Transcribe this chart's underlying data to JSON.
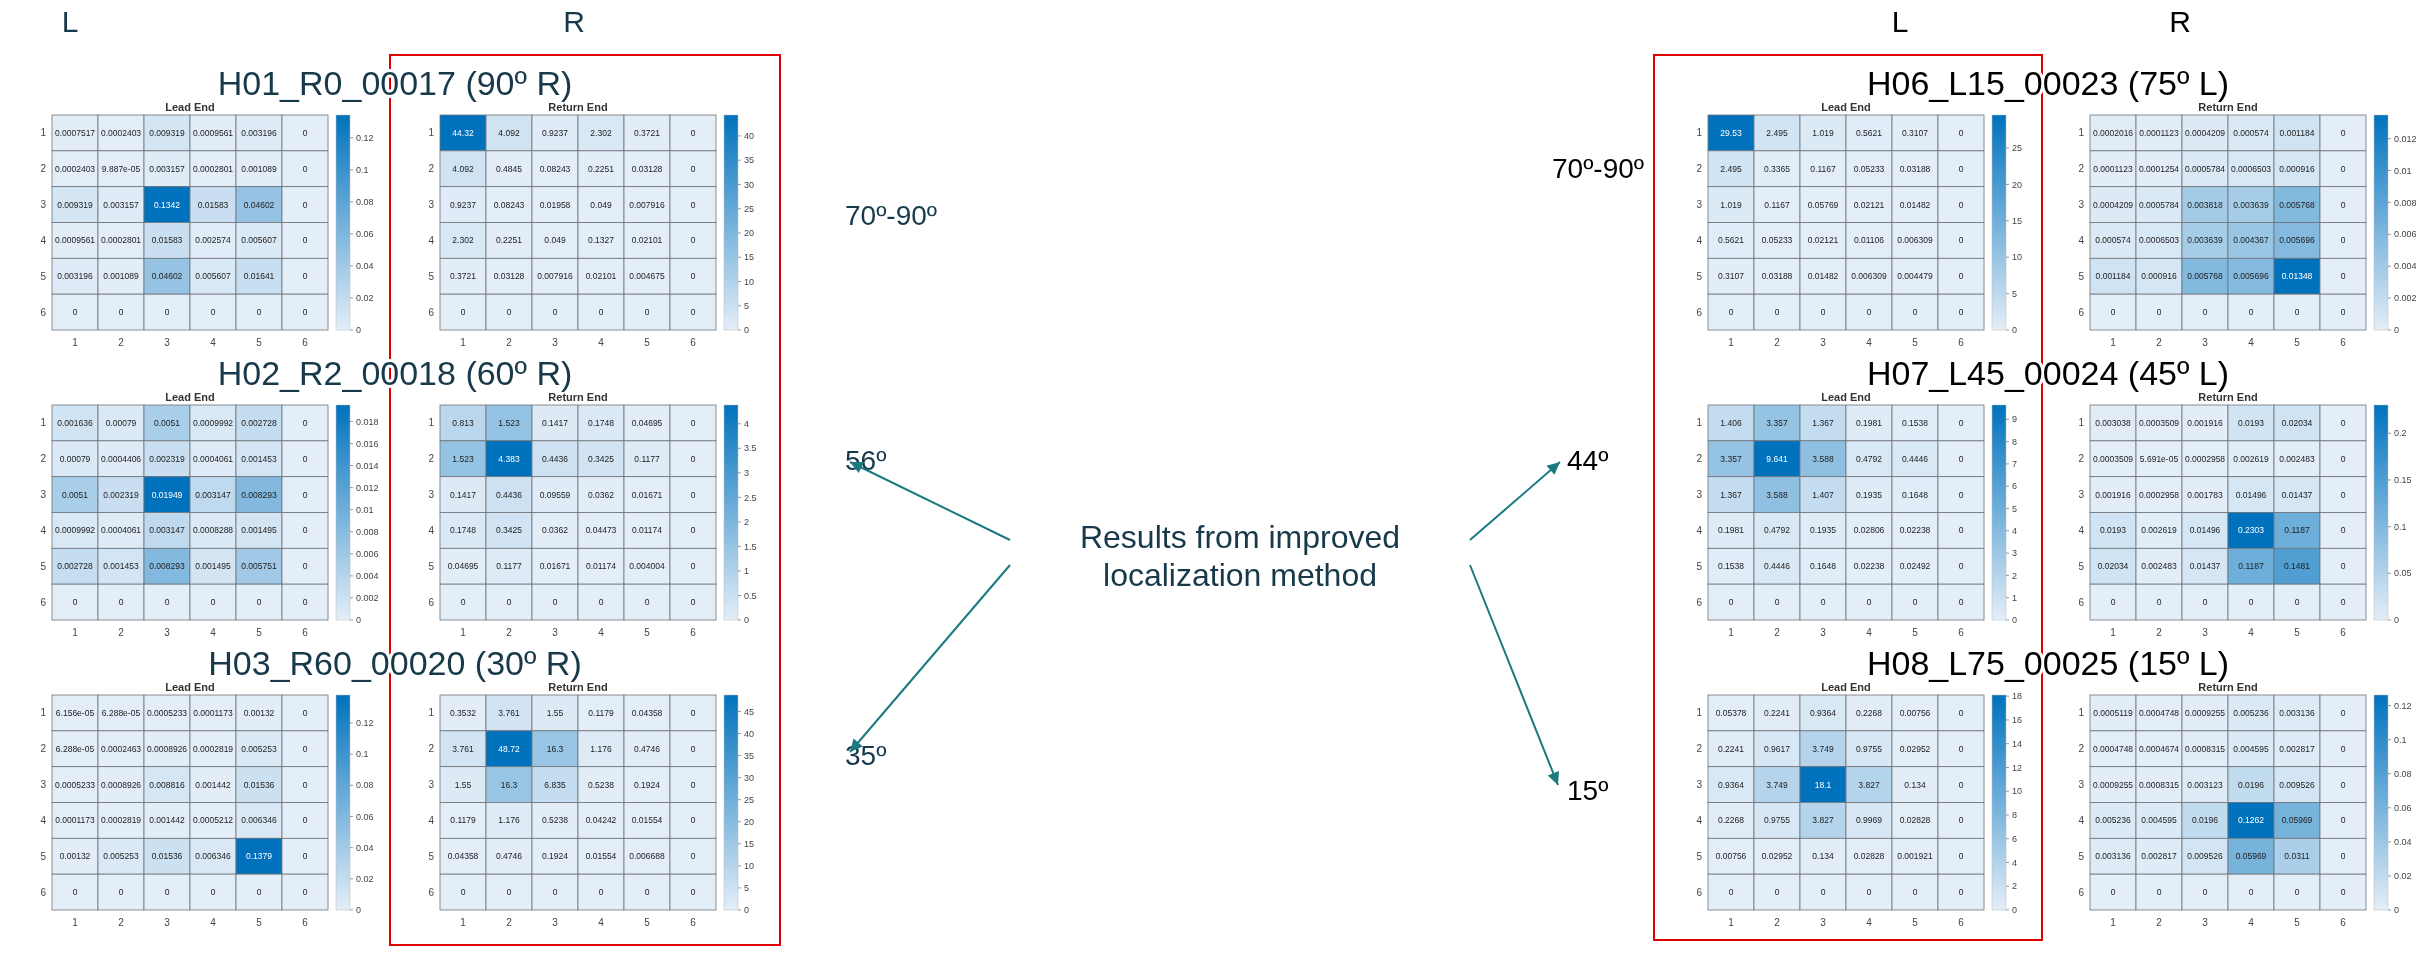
{
  "chart_data": [
    {
      "type": "heatmap",
      "subtitle": "H01_R0_00017 (90º R)",
      "title": "Lead End",
      "categories": [
        "1",
        "2",
        "3",
        "4",
        "5",
        "6"
      ],
      "y_categories": [
        "1",
        "2",
        "3",
        "4",
        "5",
        "6"
      ],
      "data_labels": true,
      "clim": [
        0,
        0.1342
      ],
      "cticks": [
        0,
        0.02,
        0.04,
        0.06,
        0.08,
        0.1,
        0.12
      ],
      "cells": [
        [
          0.0007517,
          0.0002403,
          0.009319,
          0.0009561,
          0.003196,
          0
        ],
        [
          0.0002403,
          9.887e-05,
          0.003157,
          0.0002801,
          0.001089,
          0
        ],
        [
          0.009319,
          0.003157,
          0.1342,
          0.01583,
          0.04602,
          0
        ],
        [
          0.0009561,
          0.0002801,
          0.01583,
          0.002574,
          0.005607,
          0
        ],
        [
          0.003196,
          0.001089,
          0.04602,
          0.005607,
          0.01641,
          0
        ],
        [
          0,
          0,
          0,
          0,
          0,
          0
        ]
      ]
    },
    {
      "type": "heatmap",
      "title": "Return End",
      "categories": [
        "1",
        "2",
        "3",
        "4",
        "5",
        "6"
      ],
      "y_categories": [
        "1",
        "2",
        "3",
        "4",
        "5",
        "6"
      ],
      "data_labels": true,
      "clim": [
        0,
        44.32
      ],
      "cticks": [
        0,
        5,
        10,
        15,
        20,
        25,
        30,
        35,
        40
      ],
      "cells": [
        [
          44.32,
          4.092,
          0.9237,
          2.302,
          0.3721,
          0
        ],
        [
          4.092,
          0.4845,
          0.08243,
          0.2251,
          0.03128,
          0
        ],
        [
          0.9237,
          0.08243,
          0.01958,
          0.049,
          0.007916,
          0
        ],
        [
          2.302,
          0.2251,
          0.049,
          0.1327,
          0.02101,
          0
        ],
        [
          0.3721,
          0.03128,
          0.007916,
          0.02101,
          0.004675,
          0
        ],
        [
          0,
          0,
          0,
          0,
          0,
          0
        ]
      ]
    },
    {
      "type": "heatmap",
      "subtitle": "H02_R2_00018 (60º R)",
      "title": "Lead End",
      "categories": [
        "1",
        "2",
        "3",
        "4",
        "5",
        "6"
      ],
      "y_categories": [
        "1",
        "2",
        "3",
        "4",
        "5",
        "6"
      ],
      "data_labels": true,
      "clim": [
        0,
        0.01949
      ],
      "cticks": [
        0,
        0.002,
        0.004,
        0.006,
        0.008,
        0.01,
        0.012,
        0.014,
        0.016,
        0.018
      ],
      "cells": [
        [
          0.001636,
          0.00079,
          0.0051,
          0.0009992,
          0.002728,
          0
        ],
        [
          0.00079,
          0.0004406,
          0.002319,
          0.0004061,
          0.001453,
          0
        ],
        [
          0.0051,
          0.002319,
          0.01949,
          0.003147,
          0.008293,
          0
        ],
        [
          0.0009992,
          0.0004061,
          0.003147,
          0.0008288,
          0.001495,
          0
        ],
        [
          0.002728,
          0.001453,
          0.008293,
          0.001495,
          0.005751,
          0
        ],
        [
          0,
          0,
          0,
          0,
          0,
          0
        ]
      ]
    },
    {
      "type": "heatmap",
      "title": "Return End",
      "categories": [
        "1",
        "2",
        "3",
        "4",
        "5",
        "6"
      ],
      "y_categories": [
        "1",
        "2",
        "3",
        "4",
        "5",
        "6"
      ],
      "data_labels": true,
      "clim": [
        0,
        4.383
      ],
      "cticks": [
        0,
        0.5,
        1,
        1.5,
        2,
        2.5,
        3,
        3.5,
        4
      ],
      "cells": [
        [
          0.813,
          1.523,
          0.1417,
          0.1748,
          0.04695,
          0
        ],
        [
          1.523,
          4.383,
          0.4436,
          0.3425,
          0.1177,
          0
        ],
        [
          0.1417,
          0.4436,
          0.09559,
          0.0362,
          0.01671,
          0
        ],
        [
          0.1748,
          0.3425,
          0.0362,
          0.04473,
          0.01174,
          0
        ],
        [
          0.04695,
          0.1177,
          0.01671,
          0.01174,
          0.004004,
          0
        ],
        [
          0,
          0,
          0,
          0,
          0,
          0
        ]
      ]
    },
    {
      "type": "heatmap",
      "subtitle": "H03_R60_00020 (30º R)",
      "title": "Lead End",
      "categories": [
        "1",
        "2",
        "3",
        "4",
        "5",
        "6"
      ],
      "y_categories": [
        "1",
        "2",
        "3",
        "4",
        "5",
        "6"
      ],
      "data_labels": true,
      "clim": [
        0,
        0.1379
      ],
      "cticks": [
        0,
        0.02,
        0.04,
        0.06,
        0.08,
        0.1,
        0.12
      ],
      "cells": [
        [
          6.156e-05,
          6.288e-05,
          0.0005233,
          0.0001173,
          0.00132,
          0
        ],
        [
          6.288e-05,
          0.0002463,
          0.0008926,
          0.0002819,
          0.005253,
          0
        ],
        [
          0.0005233,
          0.0008926,
          0.008816,
          0.001442,
          0.01536,
          0
        ],
        [
          0.0001173,
          0.0002819,
          0.001442,
          0.0005212,
          0.006346,
          0
        ],
        [
          0.00132,
          0.005253,
          0.01536,
          0.006346,
          0.1379,
          0
        ],
        [
          0,
          0,
          0,
          0,
          0,
          0
        ]
      ]
    },
    {
      "type": "heatmap",
      "title": "Return End",
      "categories": [
        "1",
        "2",
        "3",
        "4",
        "5",
        "6"
      ],
      "y_categories": [
        "1",
        "2",
        "3",
        "4",
        "5",
        "6"
      ],
      "data_labels": true,
      "clim": [
        0,
        48.72
      ],
      "cticks": [
        0,
        5,
        10,
        15,
        20,
        25,
        30,
        35,
        40,
        45
      ],
      "cells": [
        [
          0.3532,
          3.761,
          1.55,
          0.1179,
          0.04358,
          0
        ],
        [
          3.761,
          48.72,
          16.3,
          1.176,
          0.4746,
          0
        ],
        [
          1.55,
          16.3,
          6.835,
          0.5238,
          0.1924,
          0
        ],
        [
          0.1179,
          1.176,
          0.5238,
          0.04242,
          0.01554,
          0
        ],
        [
          0.04358,
          0.4746,
          0.1924,
          0.01554,
          0.006688,
          0
        ],
        [
          0,
          0,
          0,
          0,
          0,
          0
        ]
      ]
    },
    {
      "type": "heatmap",
      "subtitle": "H06_L15_00023 (75º L)",
      "title": "Lead End",
      "categories": [
        "1",
        "2",
        "3",
        "4",
        "5",
        "6"
      ],
      "y_categories": [
        "1",
        "2",
        "3",
        "4",
        "5",
        "6"
      ],
      "data_labels": true,
      "clim": [
        0,
        29.53
      ],
      "cticks": [
        0,
        5,
        10,
        15,
        20,
        25
      ],
      "cells": [
        [
          29.53,
          2.495,
          1.019,
          0.5621,
          0.3107,
          0
        ],
        [
          2.495,
          0.3365,
          0.1167,
          0.05233,
          0.03188,
          0
        ],
        [
          1.019,
          0.1167,
          0.05769,
          0.02121,
          0.01482,
          0
        ],
        [
          0.5621,
          0.05233,
          0.02121,
          0.01106,
          0.006309,
          0
        ],
        [
          0.3107,
          0.03188,
          0.01482,
          0.006309,
          0.004479,
          0
        ],
        [
          0,
          0,
          0,
          0,
          0,
          0
        ]
      ]
    },
    {
      "type": "heatmap",
      "title": "Return End",
      "categories": [
        "1",
        "2",
        "3",
        "4",
        "5",
        "6"
      ],
      "y_categories": [
        "1",
        "2",
        "3",
        "4",
        "5",
        "6"
      ],
      "data_labels": true,
      "clim": [
        0,
        0.01348
      ],
      "cticks": [
        0,
        0.002,
        0.004,
        0.006,
        0.008,
        0.01,
        0.012
      ],
      "cells": [
        [
          0.0002016,
          0.0001123,
          0.0004209,
          0.000574,
          0.001184,
          0
        ],
        [
          0.0001123,
          0.0001254,
          0.0005784,
          0.0006503,
          0.000916,
          0
        ],
        [
          0.0004209,
          0.0005784,
          0.003818,
          0.003639,
          0.005768,
          0
        ],
        [
          0.000574,
          0.0006503,
          0.003639,
          0.004367,
          0.005696,
          0
        ],
        [
          0.001184,
          0.000916,
          0.005768,
          0.005696,
          0.01348,
          0
        ],
        [
          0,
          0,
          0,
          0,
          0,
          0
        ]
      ]
    },
    {
      "type": "heatmap",
      "subtitle": "H07_L45_00024 (45º L)",
      "title": "Lead End",
      "categories": [
        "1",
        "2",
        "3",
        "4",
        "5",
        "6"
      ],
      "y_categories": [
        "1",
        "2",
        "3",
        "4",
        "5",
        "6"
      ],
      "data_labels": true,
      "clim": [
        0,
        9.641
      ],
      "cticks": [
        0,
        1,
        2,
        3,
        4,
        5,
        6,
        7,
        8,
        9
      ],
      "cells": [
        [
          1.406,
          3.357,
          1.367,
          0.1981,
          0.1538,
          0
        ],
        [
          3.357,
          9.641,
          3.588,
          0.4792,
          0.4446,
          0
        ],
        [
          1.367,
          3.588,
          1.407,
          0.1935,
          0.1648,
          0
        ],
        [
          0.1981,
          0.4792,
          0.1935,
          0.02806,
          0.02238,
          0
        ],
        [
          0.1538,
          0.4446,
          0.1648,
          0.02238,
          0.02492,
          0
        ],
        [
          0,
          0,
          0,
          0,
          0,
          0
        ]
      ]
    },
    {
      "type": "heatmap",
      "title": "Return End",
      "categories": [
        "1",
        "2",
        "3",
        "4",
        "5",
        "6"
      ],
      "y_categories": [
        "1",
        "2",
        "3",
        "4",
        "5",
        "6"
      ],
      "data_labels": true,
      "clim": [
        0,
        0.2303
      ],
      "cticks": [
        0,
        0.05,
        0.1,
        0.15,
        0.2
      ],
      "cells": [
        [
          0.003038,
          0.0003509,
          0.001916,
          0.0193,
          0.02034,
          0
        ],
        [
          0.0003509,
          5.691e-05,
          0.0002958,
          0.002619,
          0.002483,
          0
        ],
        [
          0.001916,
          0.0002958,
          0.001783,
          0.01496,
          0.01437,
          0
        ],
        [
          0.0193,
          0.002619,
          0.01496,
          0.2303,
          0.1187,
          0
        ],
        [
          0.02034,
          0.002483,
          0.01437,
          0.1187,
          0.1481,
          0
        ],
        [
          0,
          0,
          0,
          0,
          0,
          0
        ]
      ]
    },
    {
      "type": "heatmap",
      "subtitle": "H08_L75_00025 (15º L)",
      "title": "Lead End",
      "categories": [
        "1",
        "2",
        "3",
        "4",
        "5",
        "6"
      ],
      "y_categories": [
        "1",
        "2",
        "3",
        "4",
        "5",
        "6"
      ],
      "data_labels": true,
      "clim": [
        0,
        18.1
      ],
      "cticks": [
        0,
        2,
        4,
        6,
        8,
        10,
        12,
        14,
        16,
        18
      ],
      "cells": [
        [
          0.05378,
          0.2241,
          0.9364,
          0.2268,
          0.00756,
          0
        ],
        [
          0.2241,
          0.9617,
          3.749,
          0.9755,
          0.02952,
          0
        ],
        [
          0.9364,
          3.749,
          18.1,
          3.827,
          0.134,
          0
        ],
        [
          0.2268,
          0.9755,
          3.827,
          0.9969,
          0.02828,
          0
        ],
        [
          0.00756,
          0.02952,
          0.134,
          0.02828,
          0.001921,
          0
        ],
        [
          0,
          0,
          0,
          0,
          0,
          0
        ]
      ]
    },
    {
      "type": "heatmap",
      "title": "Return End",
      "categories": [
        "1",
        "2",
        "3",
        "4",
        "5",
        "6"
      ],
      "y_categories": [
        "1",
        "2",
        "3",
        "4",
        "5",
        "6"
      ],
      "data_labels": true,
      "clim": [
        0,
        0.1262
      ],
      "cticks": [
        0,
        0.02,
        0.04,
        0.06,
        0.08,
        0.1,
        0.12
      ],
      "cells": [
        [
          0.0005119,
          0.0004748,
          0.0009255,
          0.005236,
          0.003136,
          0
        ],
        [
          0.0004748,
          0.0004674,
          0.0008315,
          0.004595,
          0.002817,
          0
        ],
        [
          0.0009255,
          0.0008315,
          0.003123,
          0.0196,
          0.009526,
          0
        ],
        [
          0.005236,
          0.004595,
          0.0196,
          0.1262,
          0.05969,
          0
        ],
        [
          0.003136,
          0.002817,
          0.009526,
          0.05969,
          0.0311,
          0
        ],
        [
          0,
          0,
          0,
          0,
          0,
          0
        ]
      ]
    },
    {
      "type": "other",
      "annotations": [
        "L",
        "R",
        "70º-90º",
        "56º",
        "35º",
        "Results from improved localization method",
        "L",
        "R",
        "70º-90º",
        "44º",
        "15º"
      ]
    }
  ]
}
